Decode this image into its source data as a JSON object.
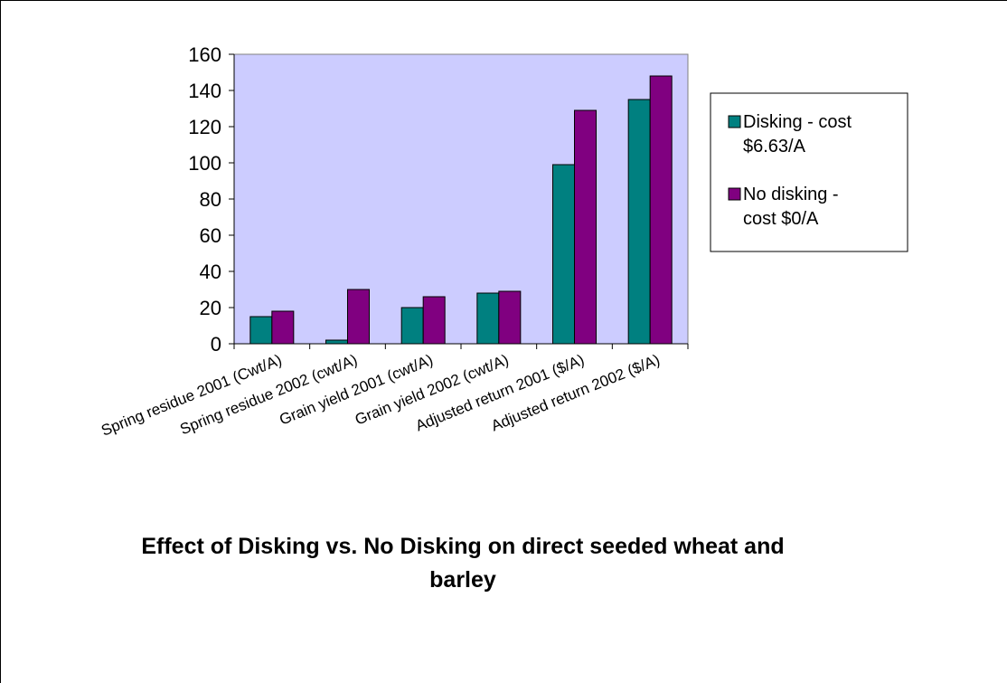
{
  "chart_data": {
    "type": "bar",
    "title_lines": [
      "Effect of Disking vs. No Disking on direct seeded wheat and",
      "barley"
    ],
    "categories": [
      "Spring residue 2001  (Cwt/A)",
      "Spring residue 2002 (cwt/A)",
      "Grain yield 2001 (cwt/A)",
      "Grain yield 2002 (cwt/A)",
      "Adjusted return 2001 ($/A)",
      "Adjusted return 2002 ($/A)"
    ],
    "series": [
      {
        "name_lines": [
          "Disking - cost",
          "$6.63/A"
        ],
        "color": "#008080",
        "values": [
          15,
          2,
          20,
          28,
          99,
          135
        ]
      },
      {
        "name_lines": [
          "No disking -",
          "cost $0/A"
        ],
        "color": "#800080",
        "values": [
          18,
          30,
          26,
          29,
          129,
          148
        ]
      }
    ],
    "ylim": [
      0,
      160
    ],
    "yticks": [
      0,
      20,
      40,
      60,
      80,
      100,
      120,
      140,
      160
    ],
    "plot_background": "#CCCCFF",
    "grid": false,
    "legend_position": "right"
  }
}
